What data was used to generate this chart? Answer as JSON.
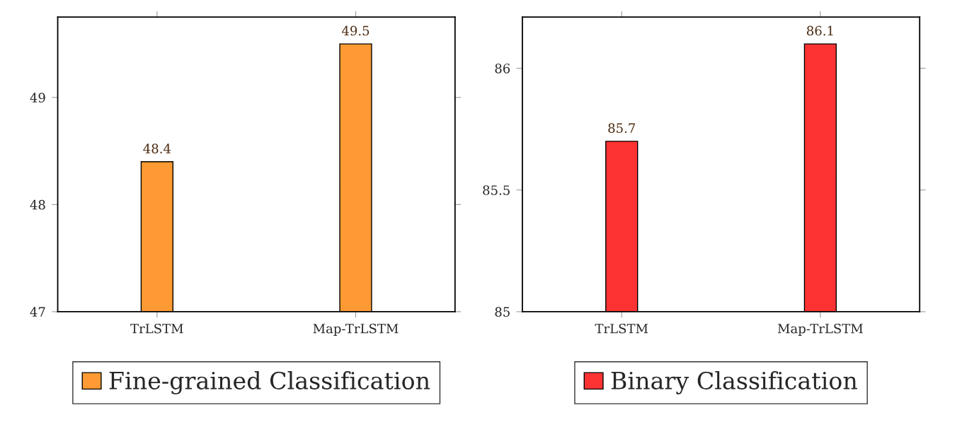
{
  "chart_data": [
    {
      "type": "bar",
      "categories": [
        "TrLSTM",
        "Map-TrLSTM"
      ],
      "series": [
        {
          "name": "Fine-grained Classification",
          "color": "#fd9a33",
          "values": [
            48.4,
            49.5
          ]
        }
      ],
      "ylim": [
        47,
        49.75
      ],
      "yticks": [
        47,
        48,
        49
      ],
      "data_labels": true,
      "legend": "bottom",
      "grid": false
    },
    {
      "type": "bar",
      "categories": [
        "TrLSTM",
        "Map-TrLSTM"
      ],
      "series": [
        {
          "name": "Binary Classification",
          "color": "#fd3333",
          "values": [
            85.7,
            86.1
          ]
        }
      ],
      "ylim": [
        85,
        86.21
      ],
      "yticks": [
        85,
        85.5,
        86
      ],
      "data_labels": true,
      "legend": "bottom",
      "grid": false
    }
  ]
}
